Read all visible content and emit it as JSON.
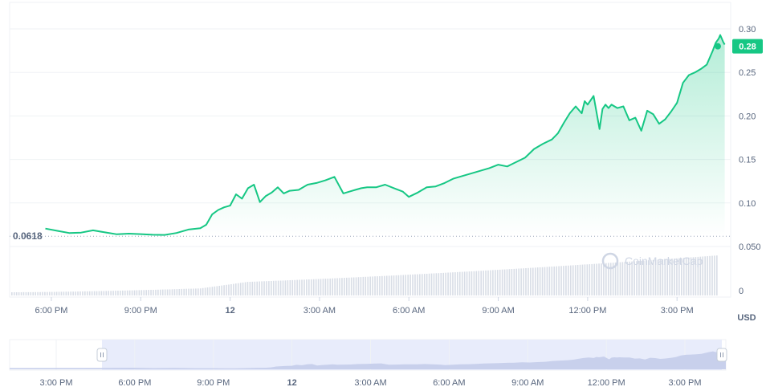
{
  "chart_data": {
    "type": "area",
    "title": "",
    "xlabel": "",
    "ylabel": "",
    "currency": "USD",
    "ylim": [
      0.05,
      0.3
    ],
    "y_ticks": [
      "0.30",
      "0.25",
      "0.20",
      "0.15",
      "0.10",
      "0.050"
    ],
    "volume_tick": "0",
    "x_ticks": [
      {
        "label": "6:00 PM",
        "t": 18,
        "bold": false
      },
      {
        "label": "9:00 PM",
        "t": 21,
        "bold": false
      },
      {
        "label": "12",
        "t": 24,
        "bold": true
      },
      {
        "label": "3:00 AM",
        "t": 27,
        "bold": false
      },
      {
        "label": "6:00 AM",
        "t": 30,
        "bold": false
      },
      {
        "label": "9:00 AM",
        "t": 33,
        "bold": false
      },
      {
        "label": "12:00 PM",
        "t": 36,
        "bold": false
      },
      {
        "label": "3:00 PM",
        "t": 39,
        "bold": false
      }
    ],
    "t_range": [
      16.6,
      40.8
    ],
    "start_price_label": "0.0618",
    "start_price": 0.0618,
    "current_price_label": "0.28",
    "current_price": 0.28,
    "line_color": "#16c784",
    "series": [
      {
        "t": [
          17.8,
          18.2,
          18.6,
          19.0,
          19.4,
          19.8,
          20.2,
          20.6,
          21.0,
          21.4,
          21.8,
          22.2,
          22.6,
          23.0,
          23.2,
          23.4,
          23.6,
          23.8,
          24.0,
          24.2,
          24.4,
          24.6,
          24.8,
          25.0,
          25.2,
          25.4,
          25.6,
          25.8,
          26.0,
          26.3,
          26.6,
          26.9,
          27.2,
          27.5,
          27.8,
          28.0,
          28.2,
          28.4,
          28.6,
          28.9,
          29.2,
          29.5,
          29.8,
          30.0,
          30.3,
          30.6,
          30.9,
          31.2,
          31.5,
          31.8,
          32.1,
          32.4,
          32.7,
          33.0,
          33.3,
          33.6,
          33.9,
          34.2,
          34.5,
          34.8,
          35.0,
          35.2,
          35.4,
          35.6,
          35.8,
          35.9,
          36.0,
          36.2,
          36.4,
          36.5,
          36.6,
          36.7,
          36.8,
          37.0,
          37.2,
          37.4,
          37.6,
          37.8,
          38.0,
          38.2,
          38.4,
          38.6,
          38.8,
          39.0,
          39.2,
          39.4,
          39.6,
          39.8,
          40.0,
          40.2,
          40.3,
          40.4,
          40.45,
          40.5,
          40.55,
          40.6
        ],
        "values": [
          0.0706,
          0.068,
          0.0655,
          0.066,
          0.0685,
          0.0662,
          0.064,
          0.0648,
          0.0642,
          0.0635,
          0.0633,
          0.0655,
          0.0695,
          0.071,
          0.075,
          0.087,
          0.092,
          0.095,
          0.097,
          0.11,
          0.105,
          0.117,
          0.121,
          0.101,
          0.108,
          0.112,
          0.118,
          0.111,
          0.114,
          0.115,
          0.121,
          0.123,
          0.126,
          0.13,
          0.111,
          0.113,
          0.115,
          0.117,
          0.118,
          0.118,
          0.121,
          0.117,
          0.113,
          0.107,
          0.112,
          0.118,
          0.119,
          0.123,
          0.128,
          0.131,
          0.134,
          0.137,
          0.14,
          0.144,
          0.142,
          0.147,
          0.152,
          0.162,
          0.168,
          0.173,
          0.18,
          0.192,
          0.203,
          0.211,
          0.203,
          0.217,
          0.213,
          0.223,
          0.185,
          0.208,
          0.213,
          0.209,
          0.213,
          0.209,
          0.211,
          0.195,
          0.198,
          0.183,
          0.206,
          0.202,
          0.191,
          0.196,
          0.205,
          0.215,
          0.238,
          0.247,
          0.25,
          0.254,
          0.259,
          0.275,
          0.284,
          0.289,
          0.293,
          0.289,
          0.285,
          0.282
        ]
      }
    ]
  },
  "watermark": "CoinMarketCap",
  "navigator": {
    "x_ticks": [
      {
        "label": "3:00 PM",
        "bold": false
      },
      {
        "label": "6:00 PM",
        "bold": false
      },
      {
        "label": "9:00 PM",
        "bold": false
      },
      {
        "label": "12",
        "bold": true
      },
      {
        "label": "3:00 AM",
        "bold": false
      },
      {
        "label": "6:00 AM",
        "bold": false
      },
      {
        "label": "9:00 AM",
        "bold": false
      },
      {
        "label": "12:00 PM",
        "bold": false
      },
      {
        "label": "3:00 PM",
        "bold": false
      }
    ]
  }
}
